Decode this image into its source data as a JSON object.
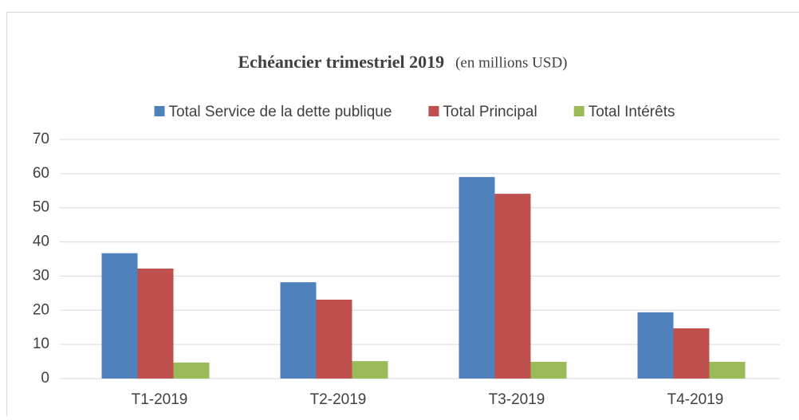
{
  "chart_data": {
    "type": "bar",
    "title": "Echéancier trimestriel 2019",
    "subtitle": "(en millions USD)",
    "categories": [
      "T1-2019",
      "T2-2019",
      "T3-2019",
      "T4-2019"
    ],
    "series": [
      {
        "name": "Total Service de la dette publique",
        "color": "#4f81bd",
        "values": [
          36.7,
          28.2,
          59.0,
          19.4
        ]
      },
      {
        "name": "Total Principal",
        "color": "#c0504d",
        "values": [
          32.2,
          23.1,
          54.1,
          14.7
        ]
      },
      {
        "name": "Total Intérêts",
        "color": "#9bbb59",
        "values": [
          4.7,
          5.1,
          4.9,
          4.9
        ]
      }
    ],
    "ylim": [
      0,
      70
    ],
    "yticks": [
      0,
      10,
      20,
      30,
      40,
      50,
      60,
      70
    ],
    "grid": true,
    "legend": "top"
  }
}
